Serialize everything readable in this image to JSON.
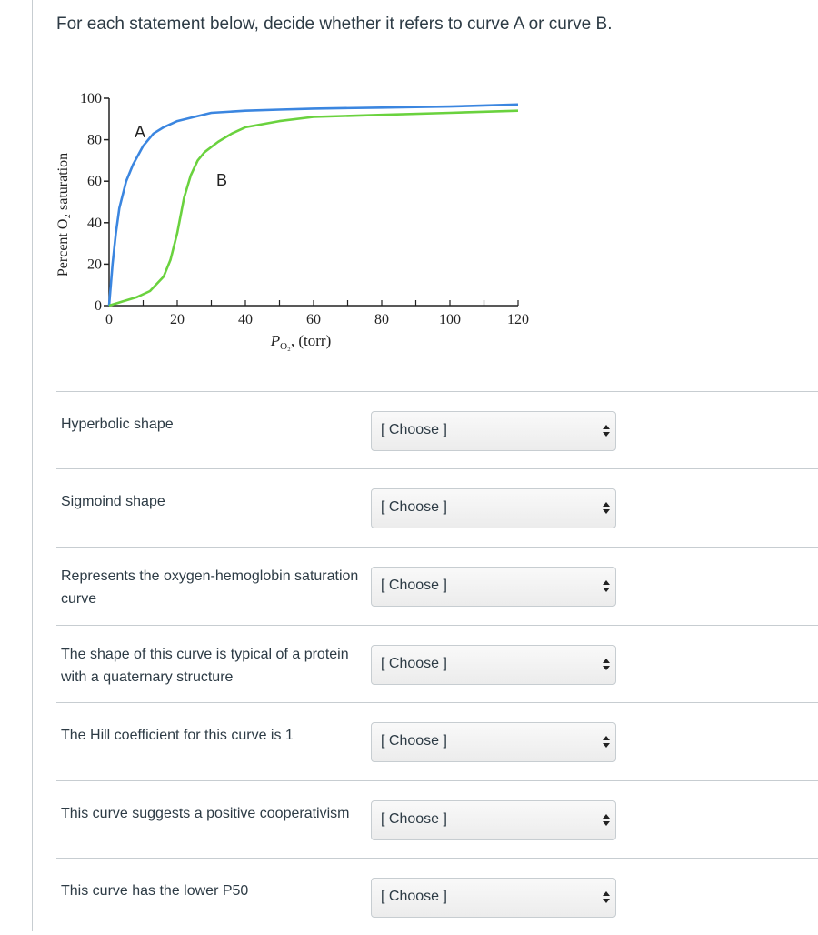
{
  "question": "For each statement below, decide whether it refers to curve A or curve B.",
  "chart_data": {
    "type": "line",
    "xlabel": "P",
    "xlabel_sub": "O₂",
    "xlabel_unit": "(torr)",
    "ylabel": "Percent O₂ saturation",
    "xlim": [
      0,
      120
    ],
    "ylim": [
      0,
      100
    ],
    "x_ticks": [
      0,
      20,
      40,
      60,
      80,
      100,
      120
    ],
    "y_ticks": [
      0,
      20,
      40,
      60,
      80,
      100
    ],
    "x_tick_labels": [
      "0",
      "20",
      "40",
      "60",
      "80",
      "100",
      "120"
    ],
    "y_tick_labels": [
      "0",
      "20",
      "40",
      "60",
      "80",
      "100"
    ],
    "grid": false,
    "series": [
      {
        "name": "A",
        "color": "#3b86e0",
        "x": [
          0,
          1,
          2,
          3,
          5,
          7,
          10,
          13,
          16,
          20,
          25,
          30,
          40,
          50,
          60,
          80,
          100,
          120
        ],
        "y": [
          0,
          20,
          35,
          47,
          60,
          68,
          77,
          83,
          86,
          89,
          91,
          93,
          94,
          94.5,
          95,
          95.5,
          96,
          97
        ]
      },
      {
        "name": "B",
        "color": "#6ad23e",
        "x": [
          0,
          4,
          8,
          12,
          16,
          18,
          20,
          22,
          24,
          26,
          28,
          32,
          36,
          40,
          50,
          60,
          80,
          100,
          120
        ],
        "y": [
          0,
          2,
          4,
          7,
          14,
          22,
          35,
          52,
          63,
          70,
          74,
          79,
          83,
          86,
          89,
          91,
          92,
          93,
          94
        ]
      }
    ]
  },
  "items": [
    {
      "statement": "Hyperbolic shape",
      "select_value": "[ Choose ]"
    },
    {
      "statement": "Sigmoind shape",
      "select_value": "[ Choose ]"
    },
    {
      "statement": "Represents the oxygen-hemoglobin saturation curve",
      "select_value": "[ Choose ]"
    },
    {
      "statement": "The shape of this curve is typical of a protein with a quaternary structure",
      "select_value": "[ Choose ]"
    },
    {
      "statement": "The Hill coefficient for this curve is 1",
      "select_value": "[ Choose ]"
    },
    {
      "statement": "This curve suggests a positive cooperativism",
      "select_value": "[ Choose ]"
    },
    {
      "statement": "This curve has the lower P50",
      "select_value": "[ Choose ]"
    }
  ]
}
